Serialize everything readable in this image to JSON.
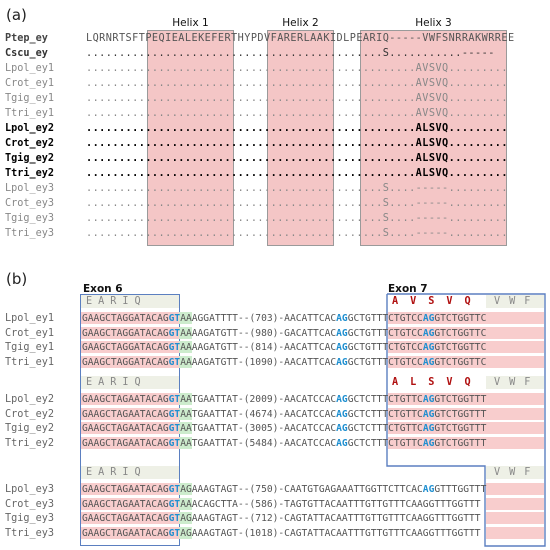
{
  "panel_a": {
    "label": "(a)",
    "helices": [
      "Helix 1",
      "Helix 2",
      "Helix 3"
    ],
    "rows": [
      {
        "name": "Ptep_ey",
        "seq": "LQRNRTSFTPEQIEALEKEFERTHYPDVFARERLAAKIDLPEARIQ-----VWFSNRRAKWRREE",
        "style": "hdr"
      },
      {
        "name": "Cscu_ey",
        "seq": ".............................................S...........-----",
        "style": "hdr"
      },
      {
        "name": "Lpol_ey1",
        "seq": "..................................................AVSVQ.........",
        "style": "gray"
      },
      {
        "name": "Crot_ey1",
        "seq": "..................................................AVSVQ.........",
        "style": "gray"
      },
      {
        "name": "Tgig_ey1",
        "seq": "..................................................AVSVQ.........",
        "style": "gray"
      },
      {
        "name": "Ttri_ey1",
        "seq": "..................................................AVSVQ.........",
        "style": "gray"
      },
      {
        "name": "Lpol_ey2",
        "seq": "..................................................ALSVQ.........",
        "style": "bold"
      },
      {
        "name": "Crot_ey2",
        "seq": "..................................................ALSVQ.........",
        "style": "bold"
      },
      {
        "name": "Tgig_ey2",
        "seq": "..................................................ALSVQ.........",
        "style": "bold"
      },
      {
        "name": "Ttri_ey2",
        "seq": "..................................................ALSVQ.........",
        "style": "bold"
      },
      {
        "name": "Lpol_ey3",
        "seq": ".............................................S....-----.........",
        "style": "gray"
      },
      {
        "name": "Crot_ey3",
        "seq": ".............................................S....-----.........",
        "style": "gray"
      },
      {
        "name": "Tgig_ey3",
        "seq": ".............................................S....-----.........",
        "style": "gray"
      },
      {
        "name": "Ttri_ey3",
        "seq": ".............................................S....-----.........",
        "style": "gray"
      }
    ]
  },
  "panel_b": {
    "label": "(b)",
    "exon6": "Exon 6",
    "exon7": "Exon 7",
    "groups": [
      {
        "aa_left": "E A R I Q",
        "aa_right": "V W F",
        "aa_red": "A V S V Q",
        "rows": [
          {
            "name": "Lpol_ey1",
            "left": "GAAGCTAGGATACAG",
            "gt": "GT",
            "mid": "AAAGGATTTT--(703)-AACATTCAC",
            "ag": "AG",
            "ex7": "GCTGTTTCTGTCC",
            "ag2": "AG",
            "tail": "GTCTGGTTC"
          },
          {
            "name": "Crot_ey1",
            "left": "GAAGCTAGGATACAG",
            "gt": "GT",
            "mid": "AAAAGATGTT--(980)-GACATTCAC",
            "ag": "AG",
            "ex7": "GCTGTTTCTGTCC",
            "ag2": "AG",
            "tail": "GTCTGGTTC"
          },
          {
            "name": "Tgig_ey1",
            "left": "GAAGCTAGGATACAG",
            "gt": "GT",
            "mid": "AAAAGATGTT--(814)-AACATTCAC",
            "ag": "AG",
            "ex7": "GCTGTTTCTGTCC",
            "ag2": "AG",
            "tail": "GTCTGGTTC"
          },
          {
            "name": "Ttri_ey1",
            "left": "GAAGCTAGGATACAG",
            "gt": "GT",
            "mid": "AAAAGATGTT-(1090)-AACATTCAC",
            "ag": "AG",
            "ex7": "GCTGTTTCTGTCC",
            "ag2": "AG",
            "tail": "GTCTGGTTC"
          }
        ]
      },
      {
        "aa_left": "E A R I Q",
        "aa_right": "V W F",
        "aa_red": "A L S V Q",
        "rows": [
          {
            "name": "Lpol_ey2",
            "left": "GAAGCTAGAATACAG",
            "gt": "GT",
            "mid": "AATGAATTAT-(2009)-AACATCCAC",
            "ag": "AG",
            "ex7": "GCTCTTTCTGTTC",
            "ag2": "AG",
            "tail": "GTCTGGTTT"
          },
          {
            "name": "Crot_ey2",
            "left": "GAAGCTAGAATACAG",
            "gt": "GT",
            "mid": "AATGAATTAT-(4674)-AACATCCAC",
            "ag": "AG",
            "ex7": "GCTCTTTCTGTTC",
            "ag2": "AG",
            "tail": "GTCTGGTTT"
          },
          {
            "name": "Tgig_ey2",
            "left": "GAAGCTAGAATACAG",
            "gt": "GT",
            "mid": "AATGAATTAT-(3005)-AACATCCAC",
            "ag": "AG",
            "ex7": "GCTCTTTCTGTTC",
            "ag2": "AG",
            "tail": "GTCTGGTTT"
          },
          {
            "name": "Ttri_ey2",
            "left": "GAAGCTAGAATACAG",
            "gt": "GT",
            "mid": "AATGAATTAT-(5484)-AACATCCAC",
            "ag": "AG",
            "ex7": "GCTCTTTCTGTTC",
            "ag2": "AG",
            "tail": "GTCTGGTTT"
          }
        ]
      },
      {
        "aa_left": "E A R I Q",
        "aa_right": "V W F",
        "rows": [
          {
            "name": "Lpol_ey3",
            "left": "GAAGCTAGAATACAG",
            "gt": "GT",
            "mid": "AGAAAGTAGT--(750)-CAATGTGAGAAATTGGTTCTTCAC",
            "ag": "AG",
            "tail": "GTTTGGTTT"
          },
          {
            "name": "Crot_ey3",
            "left": "GAAGCTAGAATACAG",
            "gt": "GT",
            "mid": "AAACAGCTTA--(586)-TAGTGTTACAATTTGTTGTTTCAAG",
            "ag": "",
            "tail": "GTTTGGTTT"
          },
          {
            "name": "Tgig_ey3",
            "left": "GAAGCTAGAATACAG",
            "gt": "GT",
            "mid": "AGAAAGTAGT--(712)-CAGTATTACAATTTGTTGTTTCAAG",
            "ag": "",
            "tail": "GTTTGGTTT"
          },
          {
            "name": "Ttri_ey3",
            "left": "GAAGCTAGAATACAG",
            "gt": "GT",
            "mid": "AGAAAGTAGT-(1018)-CAGTATTACAATTTGTTGTTTCAAG",
            "ag": "",
            "tail": "GTTTGGTTT"
          }
        ]
      }
    ]
  }
}
